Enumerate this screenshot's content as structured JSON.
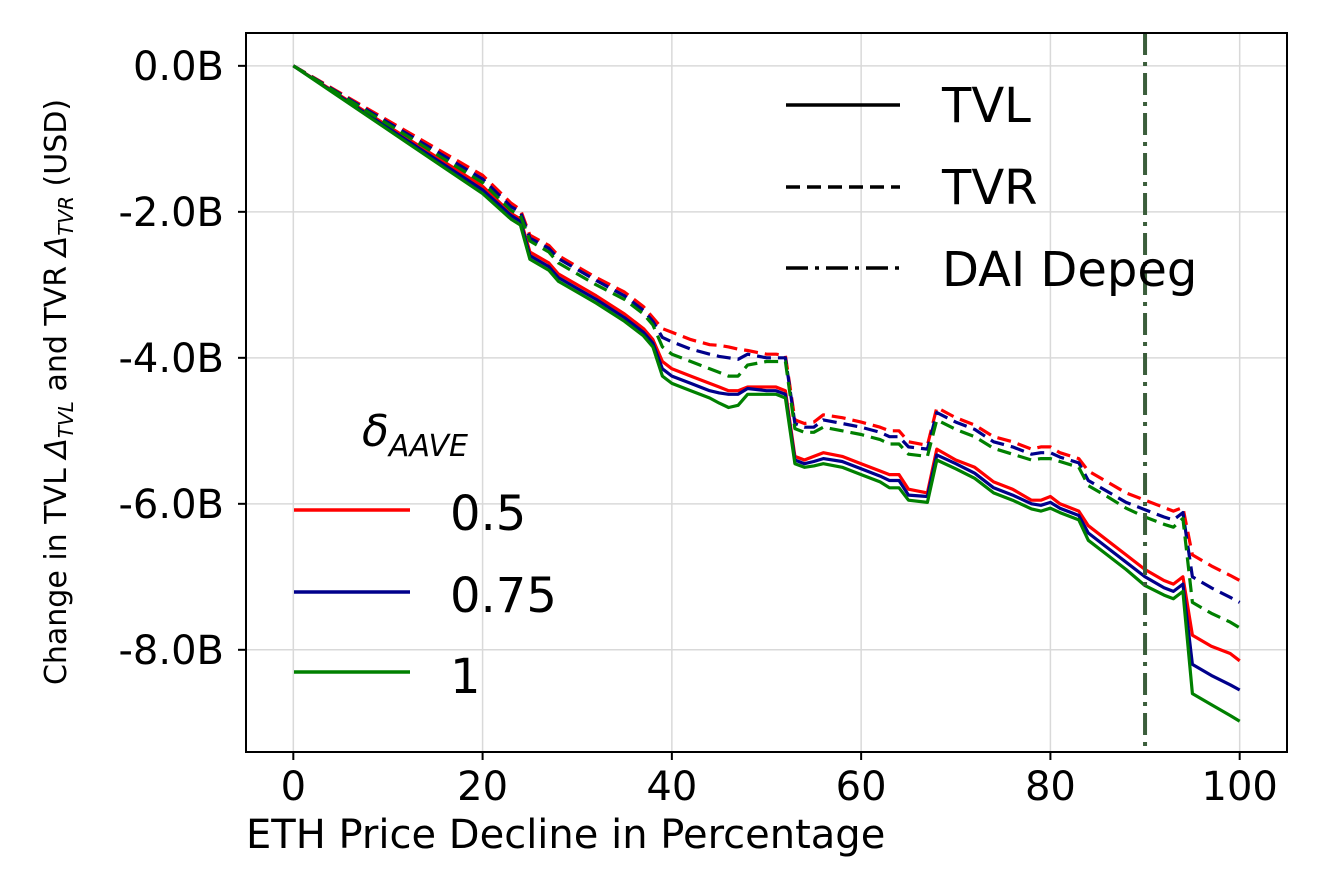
{
  "chart_data": {
    "type": "line",
    "xlabel": "ETH Price Decline in Percentage",
    "ylabel_parts": [
      "Change in TVL ",
      "Δ",
      "TVL",
      " and TVR ",
      "Δ",
      "TVR",
      " (USD)"
    ],
    "xlim": [
      -5,
      105
    ],
    "ylim": [
      -9.4,
      0.45
    ],
    "grid": true,
    "xticks": [
      0,
      20,
      40,
      60,
      80,
      100
    ],
    "xtick_labels": [
      "0",
      "20",
      "40",
      "60",
      "80",
      "100"
    ],
    "yticks": [
      0,
      -2,
      -4,
      -6,
      -8
    ],
    "ytick_labels": [
      "0.0B",
      "-2.0B",
      "-4.0B",
      "-6.0B",
      "-8.0B"
    ],
    "x": [
      0,
      4,
      8,
      12,
      16,
      20,
      23,
      24,
      25,
      27,
      28,
      30,
      32,
      35,
      37,
      38,
      39,
      40,
      42,
      44,
      45,
      46,
      47,
      48,
      50,
      51,
      52,
      53,
      54,
      55,
      56,
      58,
      60,
      62,
      63,
      64,
      65,
      67,
      68,
      70,
      72,
      74,
      76,
      78,
      79,
      80,
      81,
      83,
      84,
      86,
      88,
      90,
      92,
      93,
      94,
      95,
      97,
      99,
      100
    ],
    "series": [
      {
        "name": "TVL 0.5",
        "delta": "0.5",
        "metric": "TVL",
        "color": "#ff0000",
        "dash": "solid",
        "values": [
          0,
          -0.33,
          -0.66,
          -0.99,
          -1.32,
          -1.65,
          -2.02,
          -2.1,
          -2.55,
          -2.7,
          -2.85,
          -3.0,
          -3.15,
          -3.4,
          -3.6,
          -3.75,
          -4.05,
          -4.15,
          -4.25,
          -4.35,
          -4.4,
          -4.45,
          -4.45,
          -4.4,
          -4.4,
          -4.4,
          -4.45,
          -5.35,
          -5.4,
          -5.35,
          -5.3,
          -5.35,
          -5.45,
          -5.55,
          -5.6,
          -5.6,
          -5.8,
          -5.85,
          -5.25,
          -5.4,
          -5.5,
          -5.7,
          -5.8,
          -5.95,
          -5.95,
          -5.9,
          -6.0,
          -6.1,
          -6.3,
          -6.5,
          -6.7,
          -6.9,
          -7.05,
          -7.1,
          -7.0,
          -7.8,
          -7.95,
          -8.05,
          -8.15
        ]
      },
      {
        "name": "TVL 0.75",
        "delta": "0.75",
        "metric": "TVL",
        "color": "#00008b",
        "dash": "solid",
        "values": [
          0,
          -0.34,
          -0.68,
          -1.02,
          -1.36,
          -1.7,
          -2.05,
          -2.13,
          -2.6,
          -2.75,
          -2.9,
          -3.05,
          -3.2,
          -3.45,
          -3.65,
          -3.8,
          -4.15,
          -4.25,
          -4.35,
          -4.45,
          -4.48,
          -4.5,
          -4.5,
          -4.42,
          -4.45,
          -4.45,
          -4.5,
          -5.4,
          -5.45,
          -5.42,
          -5.38,
          -5.42,
          -5.52,
          -5.62,
          -5.68,
          -5.68,
          -5.88,
          -5.9,
          -5.33,
          -5.45,
          -5.58,
          -5.78,
          -5.88,
          -6.0,
          -6.02,
          -5.98,
          -6.06,
          -6.16,
          -6.4,
          -6.6,
          -6.8,
          -7.0,
          -7.15,
          -7.2,
          -7.1,
          -8.2,
          -8.35,
          -8.48,
          -8.55
        ]
      },
      {
        "name": "TVL 1",
        "delta": "1",
        "metric": "TVL",
        "color": "#008000",
        "dash": "solid",
        "values": [
          0,
          -0.35,
          -0.7,
          -1.05,
          -1.4,
          -1.75,
          -2.1,
          -2.18,
          -2.65,
          -2.8,
          -2.95,
          -3.1,
          -3.25,
          -3.5,
          -3.7,
          -3.85,
          -4.25,
          -4.35,
          -4.45,
          -4.55,
          -4.62,
          -4.68,
          -4.65,
          -4.5,
          -4.5,
          -4.5,
          -4.55,
          -5.45,
          -5.5,
          -5.48,
          -5.45,
          -5.5,
          -5.6,
          -5.7,
          -5.78,
          -5.78,
          -5.95,
          -5.98,
          -5.4,
          -5.52,
          -5.65,
          -5.85,
          -5.95,
          -6.07,
          -6.1,
          -6.06,
          -6.12,
          -6.22,
          -6.5,
          -6.7,
          -6.9,
          -7.12,
          -7.25,
          -7.3,
          -7.2,
          -8.6,
          -8.75,
          -8.9,
          -8.98
        ]
      },
      {
        "name": "TVR 0.5",
        "delta": "0.5",
        "metric": "TVR",
        "color": "#ff0000",
        "dash": "dashed",
        "values": [
          0,
          -0.3,
          -0.6,
          -0.9,
          -1.2,
          -1.5,
          -1.88,
          -1.97,
          -2.32,
          -2.46,
          -2.6,
          -2.75,
          -2.9,
          -3.1,
          -3.3,
          -3.45,
          -3.6,
          -3.65,
          -3.75,
          -3.82,
          -3.83,
          -3.85,
          -3.88,
          -3.9,
          -3.95,
          -3.95,
          -3.97,
          -4.85,
          -4.9,
          -4.88,
          -4.78,
          -4.82,
          -4.88,
          -4.95,
          -5.0,
          -5.0,
          -5.15,
          -5.2,
          -4.68,
          -4.82,
          -4.92,
          -5.08,
          -5.15,
          -5.25,
          -5.22,
          -5.22,
          -5.3,
          -5.38,
          -5.55,
          -5.7,
          -5.85,
          -5.95,
          -6.05,
          -6.1,
          -6.05,
          -6.7,
          -6.85,
          -6.98,
          -7.05
        ]
      },
      {
        "name": "TVR 0.75",
        "delta": "0.75",
        "metric": "TVR",
        "color": "#00008b",
        "dash": "dashed",
        "values": [
          0,
          -0.31,
          -0.62,
          -0.93,
          -1.24,
          -1.55,
          -1.93,
          -2.0,
          -2.36,
          -2.5,
          -2.64,
          -2.79,
          -2.94,
          -3.15,
          -3.35,
          -3.5,
          -3.72,
          -3.78,
          -3.88,
          -3.95,
          -3.98,
          -4.0,
          -4.02,
          -3.95,
          -4.0,
          -4.0,
          -4.0,
          -4.9,
          -4.95,
          -4.95,
          -4.85,
          -4.9,
          -4.95,
          -5.02,
          -5.08,
          -5.08,
          -5.22,
          -5.25,
          -4.75,
          -4.88,
          -4.98,
          -5.15,
          -5.22,
          -5.32,
          -5.3,
          -5.3,
          -5.36,
          -5.44,
          -5.68,
          -5.83,
          -5.98,
          -6.08,
          -6.18,
          -6.22,
          -6.12,
          -7.0,
          -7.15,
          -7.28,
          -7.35
        ]
      },
      {
        "name": "TVR 1",
        "delta": "1",
        "metric": "TVR",
        "color": "#008000",
        "dash": "dashed",
        "values": [
          0,
          -0.32,
          -0.64,
          -0.96,
          -1.28,
          -1.6,
          -1.98,
          -2.05,
          -2.4,
          -2.55,
          -2.7,
          -2.85,
          -3.0,
          -3.2,
          -3.4,
          -3.55,
          -3.85,
          -3.95,
          -4.05,
          -4.15,
          -4.2,
          -4.25,
          -4.25,
          -4.1,
          -4.05,
          -4.05,
          -4.05,
          -4.97,
          -5.02,
          -5.02,
          -4.95,
          -5.0,
          -5.05,
          -5.12,
          -5.18,
          -5.18,
          -5.32,
          -5.35,
          -4.85,
          -4.98,
          -5.08,
          -5.24,
          -5.32,
          -5.4,
          -5.38,
          -5.38,
          -5.42,
          -5.5,
          -5.75,
          -5.9,
          -6.06,
          -6.18,
          -6.28,
          -6.32,
          -6.2,
          -7.35,
          -7.5,
          -7.62,
          -7.7
        ]
      }
    ],
    "vline": {
      "x": 90,
      "label": "DAI Depeg",
      "color": "#3b5e3b",
      "dash": "dashdot"
    },
    "style_legend": {
      "position": "top-right",
      "items": [
        {
          "label": "TVL",
          "dash": "solid"
        },
        {
          "label": "TVR",
          "dash": "dashed"
        },
        {
          "label": "DAI Depeg",
          "dash": "dashdot"
        }
      ]
    },
    "color_legend": {
      "position": "lower-left",
      "title_symbol": "δ",
      "title_sub": "AAVE",
      "items": [
        {
          "label": "0.5",
          "color": "#ff0000"
        },
        {
          "label": "0.75",
          "color": "#00008b"
        },
        {
          "label": "1",
          "color": "#008000"
        }
      ]
    }
  }
}
